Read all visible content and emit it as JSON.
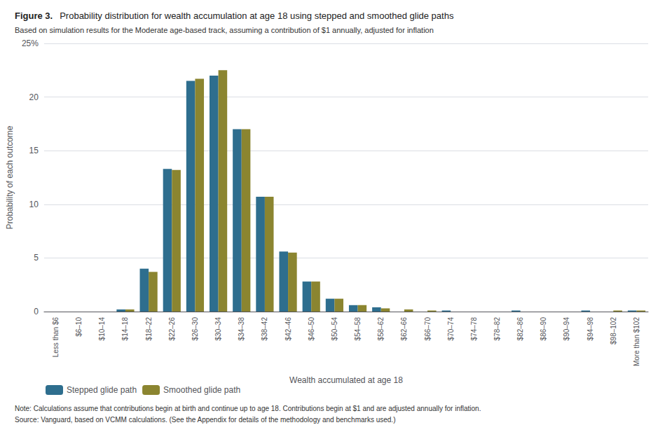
{
  "chart_data": {
    "type": "bar",
    "figure_label": "Figure 3.",
    "title": "Probability distribution for wealth accumulation at age 18 using stepped and smoothed glide paths",
    "subtitle": "Based on simulation results for the Moderate age-based track, assuming a contribution of $1 annually, adjusted for inflation",
    "xlabel": "Wealth accumulated at age 18",
    "ylabel": "Probability of each outcome",
    "categories": [
      "Less than $6",
      "$6–10",
      "$10–14",
      "$14–18",
      "$18–22",
      "$22–26",
      "$26–30",
      "$30–34",
      "$34–38",
      "$38–42",
      "$42–46",
      "$46–50",
      "$50–54",
      "$54–58",
      "$58–62",
      "$62–66",
      "$66–70",
      "$70–74",
      "$74–78",
      "$78–82",
      "$82–86",
      "$86–90",
      "$90–94",
      "$94–98",
      "$98–102",
      "More than $102"
    ],
    "series": [
      {
        "name": "Stepped glide path",
        "color": "#2E6E8E",
        "values": [
          0,
          0,
          0,
          0.2,
          4.0,
          13.3,
          21.5,
          22.0,
          17.0,
          10.7,
          5.6,
          2.8,
          1.2,
          0.6,
          0.4,
          0,
          0,
          0.1,
          0,
          0,
          0.1,
          0,
          0,
          0.1,
          0,
          0.1
        ]
      },
      {
        "name": "Smoothed glide path",
        "color": "#8B8530",
        "values": [
          0,
          0,
          0,
          0.2,
          3.7,
          13.2,
          21.7,
          22.5,
          17.0,
          10.7,
          5.5,
          2.8,
          1.2,
          0.6,
          0.3,
          0.2,
          0.1,
          0,
          0,
          0,
          0,
          0,
          0,
          0,
          0.1,
          0.1
        ]
      }
    ],
    "ylim": [
      0,
      25
    ],
    "yticks": [
      0,
      5,
      10,
      15,
      20,
      {
        "value": 25,
        "label": "25%"
      }
    ],
    "grid": true,
    "legend": "bottom",
    "note": "Note: Calculations assume that contributions begin at birth and continue up to age 18. Contributions begin at $1 and are adjusted annually for inflation.",
    "source": "Source: Vanguard, based on VCMM calculations. (See the Appendix for details of the methodology and benchmarks used.)"
  }
}
